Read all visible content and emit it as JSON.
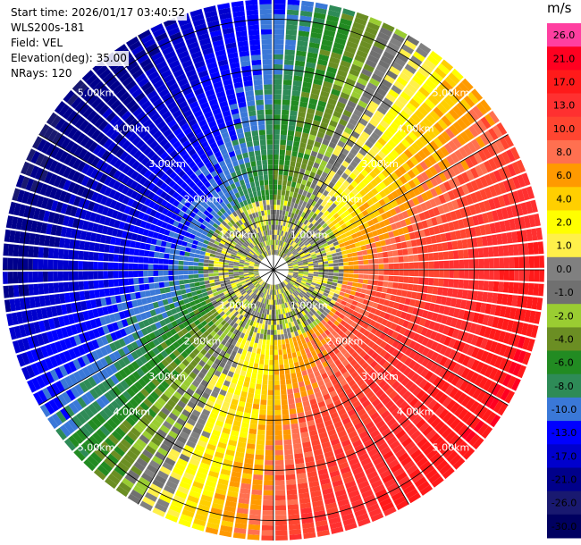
{
  "header": {
    "start_time": "Start time: 2026/01/17 03:40:52",
    "instrument": "WLS200s-181",
    "field": "Field: VEL",
    "elevation": "Elevation(deg): 35.00",
    "nrays": "NRays: 120"
  },
  "colorbar": {
    "unit": "m/s",
    "ticks": [
      "26.0",
      "21.0",
      "17.0",
      "13.0",
      "10.0",
      "8.0",
      "6.0",
      "4.0",
      "2.0",
      "1.0",
      "0.0",
      "-1.0",
      "-2.0",
      "-4.0",
      "-6.0",
      "-8.0",
      "-10.0",
      "-13.0",
      "-17.0",
      "-21.0",
      "-26.0",
      "-30.0"
    ],
    "colors": [
      "#ff3fa0",
      "#ff0020",
      "#ff1a1a",
      "#ff3030",
      "#ff4530",
      "#ff7050",
      "#ff9a00",
      "#ffcf00",
      "#ffff00",
      "#fff04a",
      "#808080",
      "#707070",
      "#9acd32",
      "#6b8e23",
      "#228b22",
      "#2e8b57",
      "#3a78d8",
      "#0000ff",
      "#0000cd",
      "#00008b",
      "#191970",
      "#000060"
    ]
  },
  "chart_data": {
    "type": "heatmap",
    "subtype": "ppi-polar",
    "field": "VEL",
    "units": "m/s",
    "elevation_deg": 35.0,
    "n_rays": 120,
    "range_rings_km": [
      "1.00km",
      "2.00km",
      "3.00km",
      "4.00km",
      "5.00km"
    ],
    "max_range_km": 5.4,
    "grid": true,
    "colorbar_range": [
      -30,
      26
    ],
    "description_by_sector": [
      {
        "sector": "north-west",
        "velocity_range": [
          -30,
          -10
        ],
        "color": "blue"
      },
      {
        "sector": "north",
        "velocity_range": [
          -13,
          -4
        ],
        "color": "blue-green"
      },
      {
        "sector": "north-east",
        "velocity_range": [
          2,
          10
        ],
        "color": "yellow-orange"
      },
      {
        "sector": "east",
        "velocity_range": [
          10,
          21
        ],
        "color": "red"
      },
      {
        "sector": "south-east",
        "velocity_range": [
          10,
          21
        ],
        "color": "red"
      },
      {
        "sector": "south",
        "velocity_range": [
          6,
          17
        ],
        "color": "orange-red"
      },
      {
        "sector": "south-west",
        "velocity_range": [
          -2,
          6
        ],
        "color": "yellow"
      },
      {
        "sector": "west",
        "velocity_range": [
          -21,
          -8
        ],
        "color": "blue"
      }
    ]
  }
}
